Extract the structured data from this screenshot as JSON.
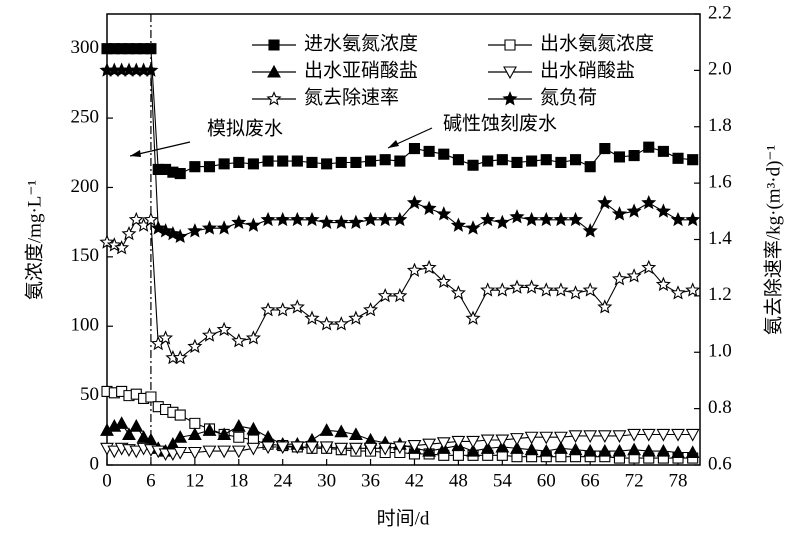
{
  "chart_data": {
    "type": "line",
    "xlabel": "时间/d",
    "ylabel": "氨浓度/mg·L⁻¹",
    "y2label": "氨去除速率/kg·(m³·d)⁻¹",
    "annotations": [
      "模拟废水",
      "碱性蚀刻废水"
    ],
    "vline": 6,
    "xlim": [
      0,
      81
    ],
    "xticks": [
      0,
      6,
      12,
      18,
      24,
      30,
      36,
      42,
      48,
      54,
      60,
      66,
      72,
      78
    ],
    "ylim": [
      0,
      325
    ],
    "yticks": [
      0,
      50,
      100,
      150,
      200,
      250,
      300
    ],
    "y2lim": [
      0.6,
      2.2
    ],
    "y2ticks": [
      0.6,
      0.8,
      {
        "value": 1,
        "label": "1.0"
      },
      1.2,
      1.4,
      1.6,
      1.8,
      {
        "value": 2,
        "label": "2.0"
      },
      2.2
    ],
    "x": [
      0,
      1,
      2,
      3,
      4,
      5,
      6,
      7,
      8,
      9,
      10,
      12,
      14,
      16,
      18,
      20,
      22,
      24,
      26,
      28,
      30,
      32,
      34,
      36,
      38,
      40,
      42,
      44,
      46,
      48,
      50,
      52,
      54,
      56,
      58,
      60,
      62,
      64,
      66,
      68,
      70,
      72,
      74,
      76,
      78,
      80
    ],
    "series": [
      {
        "name": "进水氨氮浓度",
        "color": "#000",
        "marker": "square-filled",
        "values": [
          300,
          300,
          300,
          300,
          300,
          300,
          300,
          213,
          213,
          211,
          210,
          215,
          215,
          217,
          218,
          217,
          219,
          219,
          219,
          218,
          217,
          218,
          218,
          219,
          220,
          219,
          228,
          226,
          224,
          220,
          216,
          219,
          220,
          218,
          219,
          220,
          218,
          220,
          215,
          228,
          222,
          223,
          229,
          226,
          221,
          220
        ]
      },
      {
        "name": "出水氨氮浓度",
        "color": "#000",
        "marker": "square-open",
        "values": [
          53,
          52,
          53,
          50,
          51,
          48,
          49,
          42,
          40,
          38,
          36,
          30,
          26,
          22,
          20,
          18,
          15,
          14,
          13,
          12,
          12,
          11,
          10,
          10,
          9,
          9,
          8,
          8,
          7,
          7,
          7,
          7,
          7,
          6,
          6,
          6,
          6,
          6,
          6,
          6,
          5,
          5,
          5,
          5,
          5,
          5
        ]
      },
      {
        "name": "出水亚硝酸盐",
        "color": "#000",
        "marker": "triangle-filled",
        "values": [
          25,
          28,
          30,
          22,
          28,
          20,
          18,
          12,
          10,
          15,
          20,
          22,
          25,
          22,
          28,
          26,
          20,
          15,
          15,
          18,
          25,
          24,
          22,
          18,
          16,
          15,
          12,
          10,
          12,
          14,
          10,
          12,
          13,
          12,
          11,
          10,
          12,
          11,
          10,
          10,
          10,
          11,
          10,
          10,
          9,
          9
        ]
      },
      {
        "name": "出水硝酸盐",
        "color": "#000",
        "marker": "down-triangle-open",
        "values": [
          12,
          10,
          12,
          11,
          10,
          12,
          11,
          10,
          8,
          8,
          9,
          9,
          10,
          10,
          10,
          12,
          13,
          13,
          13,
          13,
          13,
          12,
          12,
          12,
          12,
          13,
          14,
          15,
          16,
          17,
          17,
          18,
          18,
          19,
          20,
          20,
          20,
          21,
          21,
          21,
          21,
          22,
          22,
          22,
          22,
          22
        ]
      },
      {
        "name": "氮去除速率",
        "color": "#000",
        "marker": "star-open",
        "axis": "y2",
        "values": [
          1.39,
          1.38,
          1.37,
          1.42,
          1.47,
          1.45,
          1.47,
          1.03,
          1.05,
          0.98,
          0.98,
          1.02,
          1.06,
          1.08,
          1.04,
          1.05,
          1.15,
          1.15,
          1.16,
          1.12,
          1.1,
          1.1,
          1.12,
          1.15,
          1.2,
          1.2,
          1.29,
          1.3,
          1.25,
          1.21,
          1.12,
          1.22,
          1.22,
          1.23,
          1.23,
          1.22,
          1.22,
          1.21,
          1.22,
          1.16,
          1.26,
          1.27,
          1.3,
          1.24,
          1.21,
          1.22
        ]
      },
      {
        "name": "氮负荷",
        "color": "#000",
        "marker": "star-filled",
        "axis": "y2",
        "values": [
          2,
          2,
          2,
          2,
          2,
          2,
          2,
          1.44,
          1.43,
          1.42,
          1.41,
          1.43,
          1.44,
          1.44,
          1.46,
          1.45,
          1.47,
          1.47,
          1.47,
          1.47,
          1.46,
          1.46,
          1.46,
          1.47,
          1.47,
          1.47,
          1.53,
          1.51,
          1.49,
          1.45,
          1.44,
          1.47,
          1.46,
          1.48,
          1.47,
          1.47,
          1.47,
          1.47,
          1.43,
          1.53,
          1.49,
          1.5,
          1.53,
          1.5,
          1.47,
          1.47
        ]
      }
    ]
  }
}
